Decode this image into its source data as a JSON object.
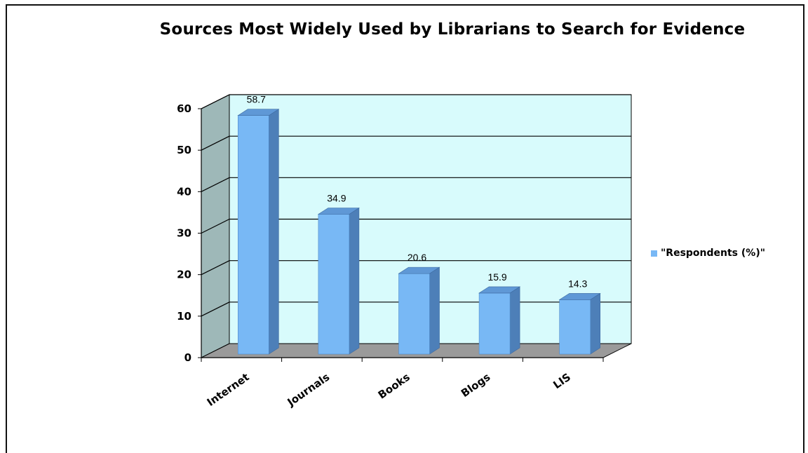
{
  "chart_data": {
    "type": "bar",
    "title": "Sources Most Widely Used by Librarians to Search for Evidence",
    "xlabel": "",
    "ylabel": "",
    "categories": [
      "Internet",
      "Journals",
      "Books",
      "Blogs",
      "LIS"
    ],
    "series": [
      {
        "name": "\"Respondents (%)\"",
        "values": [
          58.7,
          34.9,
          20.6,
          15.9,
          14.3
        ]
      }
    ],
    "data_labels": [
      "58.7",
      "34.9",
      "20.6",
      "15.9",
      "14.3"
    ],
    "ylim": [
      0,
      60
    ],
    "yticks": [
      0,
      10,
      20,
      30,
      40,
      50,
      60
    ],
    "ytick_labels": [
      "0",
      "10",
      "20",
      "30",
      "40",
      "50",
      "60"
    ],
    "grid": true,
    "legend_position": "right",
    "three_d": true,
    "colors": {
      "bar_front": "#78b8f5",
      "bar_side": "#4d7fb8",
      "bar_top": "#5f98d6",
      "back_wall": "#d8fbfc",
      "side_wall": "#9eb8b8",
      "floor": "#9a9a9a",
      "gridline": "#000000"
    }
  }
}
